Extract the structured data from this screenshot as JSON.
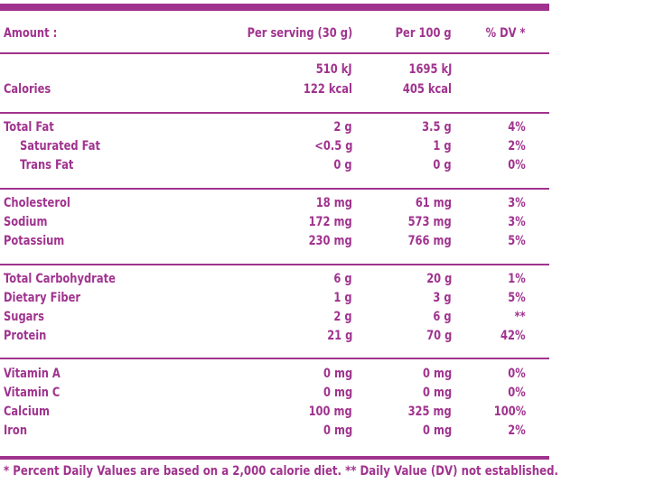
{
  "header": {
    "amount_label": "Amount :",
    "per_serving_label": "Per serving (30 g)",
    "per_100g_label": "Per 100 g",
    "dv_label": "% DV *"
  },
  "calories": {
    "label": "Calories",
    "serving_kj": "510 kJ",
    "serving_kcal": "122 kcal",
    "per100_kj": "1695 kJ",
    "per100_kcal": "405 kcal"
  },
  "groups": [
    [
      {
        "label": "Total Fat",
        "serving": "2 g",
        "per100": "3.5 g",
        "dv": "4%",
        "indent": false
      },
      {
        "label": "Saturated Fat",
        "serving": "<0.5 g",
        "per100": "1 g",
        "dv": "2%",
        "indent": true
      },
      {
        "label": "Trans Fat",
        "serving": "0 g",
        "per100": "0 g",
        "dv": "0%",
        "indent": true
      }
    ],
    [
      {
        "label": "Cholesterol",
        "serving": "18 mg",
        "per100": "61 mg",
        "dv": "3%",
        "indent": false
      },
      {
        "label": "Sodium",
        "serving": "172 mg",
        "per100": "573 mg",
        "dv": "3%",
        "indent": false
      },
      {
        "label": "Potassium",
        "serving": "230 mg",
        "per100": "766 mg",
        "dv": "5%",
        "indent": false
      }
    ],
    [
      {
        "label": "Total Carbohydrate",
        "serving": "6 g",
        "per100": "20 g",
        "dv": "1%",
        "indent": false
      },
      {
        "label": "Dietary Fiber",
        "serving": "1 g",
        "per100": "3 g",
        "dv": "5%",
        "indent": false
      },
      {
        "label": "Sugars",
        "serving": "2 g",
        "per100": "6 g",
        "dv": "**",
        "indent": false
      },
      {
        "label": "Protein",
        "serving": "21 g",
        "per100": "70 g",
        "dv": "42%",
        "indent": false
      }
    ],
    [
      {
        "label": "Vitamin A",
        "serving": "0 mg",
        "per100": "0 mg",
        "dv": "0%",
        "indent": false
      },
      {
        "label": "Vitamin C",
        "serving": "0 mg",
        "per100": "0 mg",
        "dv": "0%",
        "indent": false
      },
      {
        "label": "Calcium",
        "serving": "100 mg",
        "per100": "325 mg",
        "dv": "100%",
        "indent": false
      },
      {
        "label": "Iron",
        "serving": "0 mg",
        "per100": "0 mg",
        "dv": "2%",
        "indent": false
      }
    ]
  ],
  "footnote": "* Percent Daily Values are based on a 2,000 calorie diet. ** Daily Value (DV) not established.",
  "colors": {
    "accent": "#a0338e"
  }
}
